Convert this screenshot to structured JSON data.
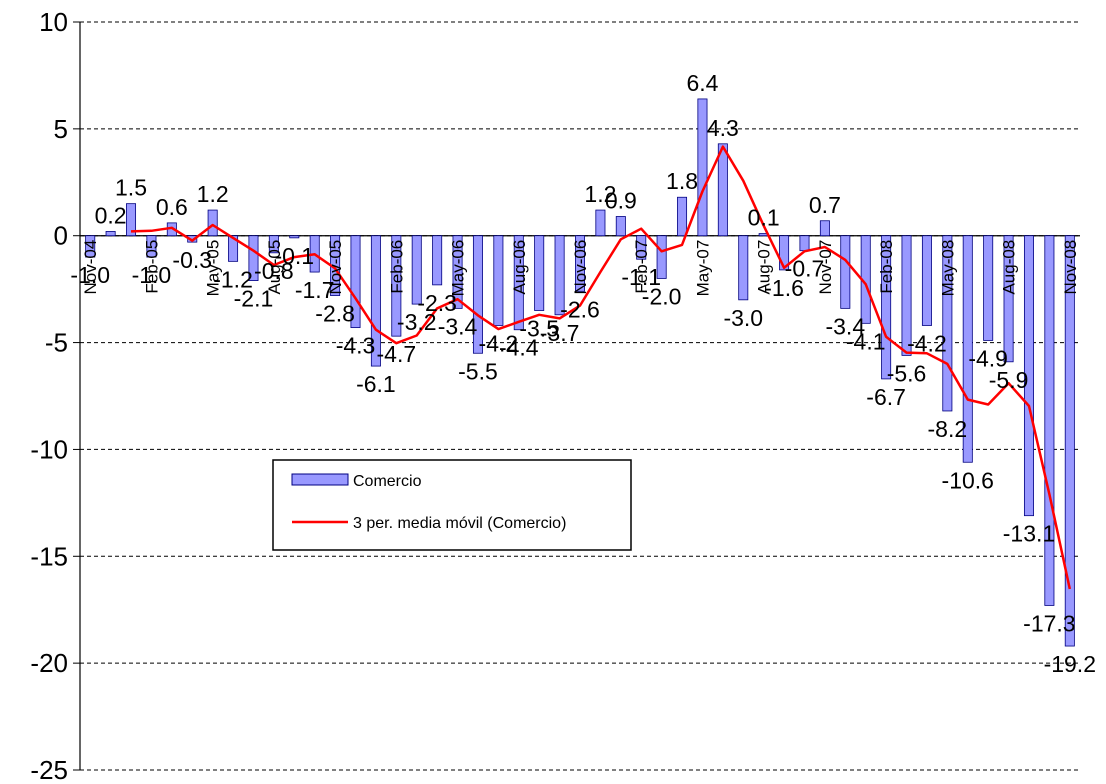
{
  "chart_data": {
    "type": "bar",
    "title": "",
    "xlabel": "",
    "ylabel": "",
    "ylim": [
      -25,
      10
    ],
    "yticks": [
      10,
      5,
      0,
      -5,
      -10,
      -15,
      -20,
      -25
    ],
    "grid": "horizontal dashed",
    "legend_position": "center-left",
    "colors": {
      "bar_fill": "#9999ff",
      "bar_stroke": "#000080",
      "line": "#ff0000",
      "grid": "#000000"
    },
    "tick_labels": [
      {
        "index": 0,
        "label": "Nov-04"
      },
      {
        "index": 3,
        "label": "Feb-05"
      },
      {
        "index": 6,
        "label": "May-05"
      },
      {
        "index": 9,
        "label": "Aug-05"
      },
      {
        "index": 12,
        "label": "Nov-05"
      },
      {
        "index": 15,
        "label": "Feb-06"
      },
      {
        "index": 18,
        "label": "May-06"
      },
      {
        "index": 21,
        "label": "Aug-06"
      },
      {
        "index": 24,
        "label": "Nov-06"
      },
      {
        "index": 27,
        "label": "Feb-07"
      },
      {
        "index": 30,
        "label": "May-07"
      },
      {
        "index": 33,
        "label": "Aug-07"
      },
      {
        "index": 36,
        "label": "Nov-07"
      },
      {
        "index": 39,
        "label": "Feb-08"
      },
      {
        "index": 42,
        "label": "May-08"
      },
      {
        "index": 45,
        "label": "Aug-08"
      },
      {
        "index": 48,
        "label": "Nov-08"
      }
    ],
    "series": [
      {
        "name": "Comercio",
        "kind": "bar",
        "values": [
          -1.0,
          0.2,
          1.5,
          -1.0,
          0.6,
          -0.3,
          1.2,
          -1.2,
          -2.1,
          -0.8,
          -0.1,
          -1.7,
          -2.8,
          -4.3,
          -6.1,
          -4.7,
          -3.2,
          -2.3,
          -3.4,
          -5.5,
          -4.2,
          -4.4,
          -3.5,
          -3.7,
          -2.6,
          1.2,
          0.9,
          -1.1,
          -2.0,
          1.8,
          6.4,
          4.3,
          -3.0,
          0.1,
          -1.6,
          -0.7,
          0.7,
          -3.4,
          -4.1,
          -6.7,
          -5.6,
          -4.2,
          -8.2,
          -10.6,
          -4.9,
          -5.9,
          -13.1,
          -17.3,
          -19.2
        ],
        "labels": [
          "-1.0",
          "0.2",
          "1.5",
          "-1.0",
          "0.6",
          "-0.3",
          "1.2",
          "-1.2",
          "-2.1",
          "-0.8",
          "-0.1",
          "-1.7",
          "-2.8",
          "-4.3",
          "-6.1",
          "-4.7",
          "-3.2",
          "-2.3",
          "-3.4",
          "-5.5",
          "-4.2",
          "-4.4",
          "-3.5",
          "-3.7",
          "-2.6",
          "1.2",
          "0.9",
          "-1.1",
          "-2.0",
          "1.8",
          "6.4",
          "4.3",
          "-3.0",
          "0.1",
          "-1.6",
          "-0.7",
          "0.7",
          "-3.4",
          "-4.1",
          "-6.7",
          "-5.6",
          "-4.2",
          "-8.2",
          "-10.6",
          "-4.9",
          "-5.9",
          "-13.1",
          "-17.3",
          "-19.2"
        ]
      },
      {
        "name": "3 per. media móvil (Comercio)",
        "kind": "line",
        "start_index": 2,
        "values": [
          0.2,
          0.23,
          0.37,
          -0.23,
          0.5,
          -0.1,
          -0.7,
          -1.37,
          -1.0,
          -0.87,
          -1.53,
          -2.93,
          -4.4,
          -5.03,
          -4.67,
          -3.4,
          -2.97,
          -3.73,
          -4.37,
          -4.03,
          -3.7,
          -3.87,
          -3.27,
          -1.7,
          -0.17,
          0.33,
          -0.73,
          -0.43,
          2.07,
          4.17,
          2.57,
          0.47,
          -1.5,
          -0.73,
          -0.53,
          -1.13,
          -2.27,
          -4.73,
          -5.47,
          -5.5,
          -6.0,
          -7.67,
          -7.9,
          -6.9,
          -7.97,
          -12.1,
          -16.53
        ]
      }
    ]
  }
}
